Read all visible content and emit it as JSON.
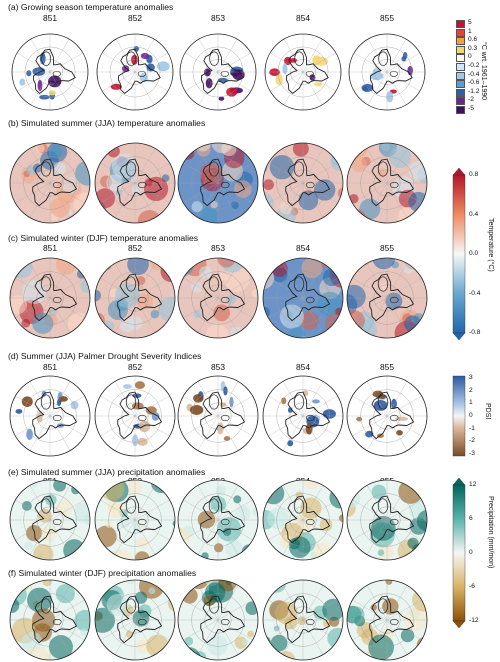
{
  "panels": [
    {
      "id": "a",
      "title": "(a) Growing season temperature anomalies",
      "years": [
        "851",
        "852",
        "853",
        "854",
        "855"
      ]
    },
    {
      "id": "b",
      "title": "(b) Simulated summer (JJA) temperature anomalies",
      "years": []
    },
    {
      "id": "c",
      "title": "(c) Simulated winter (DJF) temperature anomalies",
      "years": [
        "851",
        "852",
        "853",
        "854",
        "855"
      ]
    },
    {
      "id": "d",
      "title": "(d) Summer (JJA) Palmer Drought Severity Indices",
      "years": [
        "851",
        "852",
        "853",
        "854",
        "855"
      ]
    },
    {
      "id": "e",
      "title": "(e) Simulated summer (JJA) precipitation anomalies",
      "years": [
        "851",
        "852",
        "853",
        "854",
        "855"
      ]
    },
    {
      "id": "f",
      "title": "(f) Simulated winter (DJF) precipitation anomalies",
      "years": [
        "851",
        "852",
        "853",
        "854",
        "855"
      ]
    }
  ],
  "colorbars": {
    "reconstruction": {
      "title": "°C wrt. 1961–1990",
      "ticks": [
        "5",
        "1",
        "0.6",
        "0.3",
        "0",
        "-0.2",
        "-0.4",
        "-0.6",
        "-1.2",
        "-2",
        "-5"
      ],
      "colors": [
        "#c8102e",
        "#e8432a",
        "#f6a23a",
        "#f3d777",
        "#fbfbf4",
        "#d2e7f5",
        "#9ec8e8",
        "#5f9bd3",
        "#2d5ea6",
        "#6d2591",
        "#3f0f62"
      ]
    },
    "temperature": {
      "title": "Temperature (°C)",
      "ticks": [
        "0.8",
        "0.4",
        "0.0",
        "-0.4",
        "-0.8"
      ]
    },
    "pdsi": {
      "title": "PDSI",
      "ticks": [
        "3",
        "2",
        "1",
        "0",
        "-1",
        "-2",
        "-3"
      ]
    },
    "precipitation": {
      "title": "Precipitation (mm/mon)",
      "ticks": [
        "12",
        "6",
        "0",
        "-6",
        "-12"
      ]
    }
  }
}
